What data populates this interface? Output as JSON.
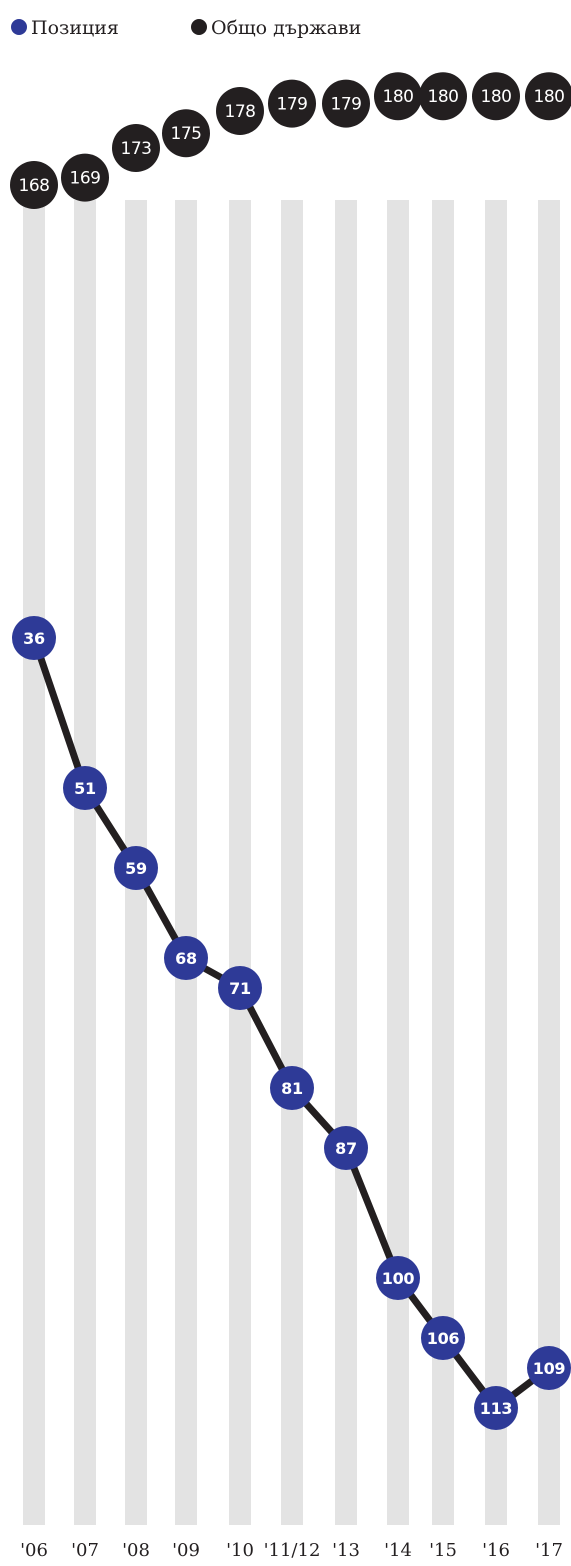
{
  "legend": {
    "items": [
      {
        "label": "Позиция",
        "color": "#2e3a97"
      },
      {
        "label": "Общо държави",
        "color": "#231f20"
      }
    ]
  },
  "chart_data": {
    "type": "line",
    "categories": [
      "'06",
      "'07",
      "'08",
      "'09",
      "'10",
      "'11/12",
      "'13",
      "'14",
      "'15",
      "'16",
      "'17"
    ],
    "series": [
      {
        "name": "Позиция",
        "color": "#2e3a97",
        "values": [
          36,
          51,
          59,
          68,
          71,
          81,
          87,
          100,
          106,
          113,
          109
        ]
      },
      {
        "name": "Общо държави",
        "color": "#231f20",
        "values": [
          168,
          169,
          173,
          175,
          178,
          179,
          179,
          180,
          180,
          180,
          180
        ]
      }
    ],
    "y_axis": {
      "inverted": true,
      "visible": false
    },
    "bar_color": "#e3e3e3",
    "grid": false,
    "legend_position": "top-left"
  }
}
